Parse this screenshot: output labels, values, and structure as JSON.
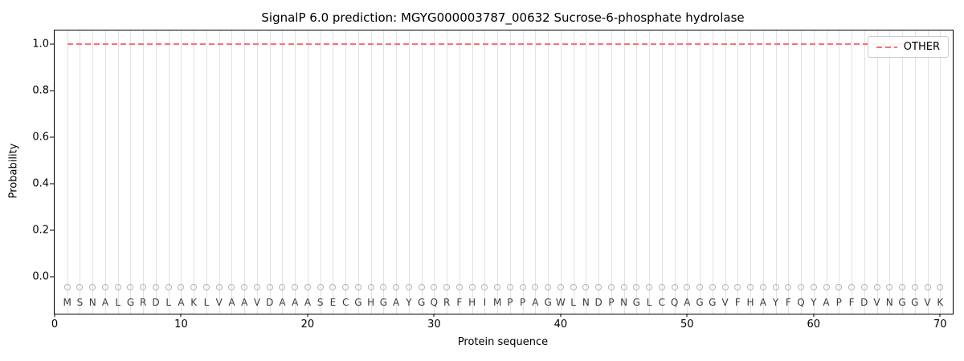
{
  "title": "SignalP 6.0 prediction: MGYG000003787_00632 Sucrose-6-phosphate hydrolase",
  "chart_data": {
    "type": "line",
    "title": "SignalP 6.0 prediction: MGYG000003787_00632 Sucrose-6-phosphate hydrolase",
    "xlabel": "Protein sequence",
    "ylabel": "Probability",
    "xlim": [
      0,
      71
    ],
    "ylim": [
      -0.16,
      1.06
    ],
    "x_ticks": [
      0,
      10,
      20,
      30,
      40,
      50,
      60,
      70
    ],
    "y_ticks": [
      0.0,
      0.2,
      0.4,
      0.6,
      0.8,
      1.0
    ],
    "grid": "vertical-line-per-residue",
    "legend_position": "upper right",
    "sequence": "MSNALGRDLAKLVAAVDAAASECGHGAYGQRFHIMPPAGWLNDPNGLCQAGGVFHAYFQYAPFDVNGGVK",
    "n_positions": 70,
    "series": [
      {
        "name": "OTHER",
        "line_style": "dashed",
        "color": "#fa7070",
        "constant_value": 1.0,
        "x_range": [
          1,
          70
        ]
      }
    ],
    "marker_row": {
      "shape": "open-circle",
      "color": "#b4b4b4",
      "y": -0.045
    },
    "letter_row_y": -0.112,
    "colors": {
      "gridline": "#e2e2e2",
      "spine": "#000000",
      "letter": "#3c3c3c",
      "background": "#ffffff"
    }
  }
}
